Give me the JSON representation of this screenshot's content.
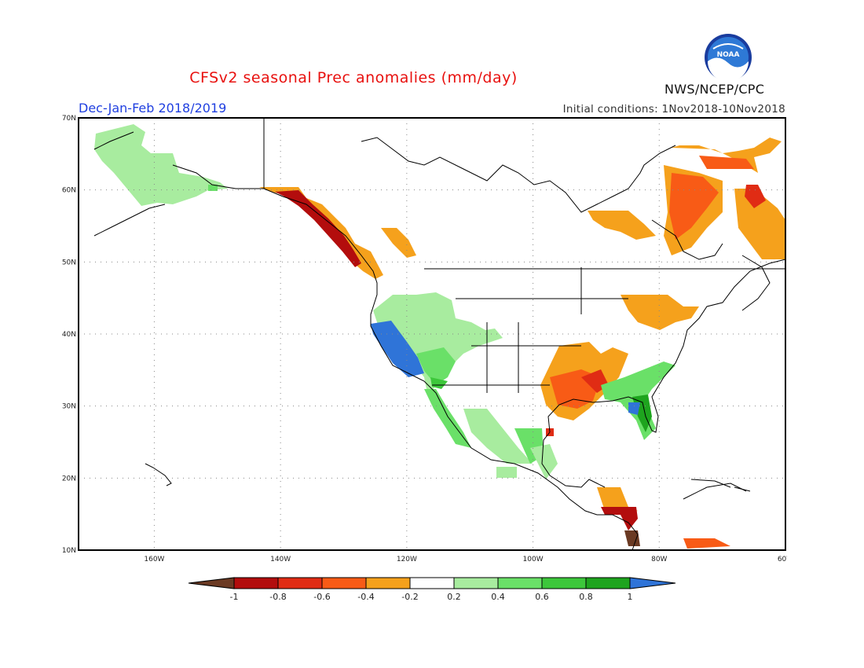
{
  "title": "CFSv2 seasonal Prec anomalies (mm/day)",
  "period": "Dec-Jan-Feb 2018/2019",
  "initial_conditions": "Initial conditions: 1Nov2018-10Nov2018",
  "agency": "NWS/NCEP/CPC",
  "logo_text": "NOAA",
  "map": {
    "lat_labels": [
      "70N",
      "60N",
      "50N",
      "40N",
      "30N",
      "20N",
      "10N"
    ],
    "lon_labels": [
      "160W",
      "140W",
      "120W",
      "100W",
      "80W",
      "60W"
    ],
    "lat_range": [
      10,
      70
    ],
    "lon_range": [
      -172,
      -60
    ],
    "grid": "dotted"
  },
  "colorbar": {
    "labels": [
      "-1",
      "-0.8",
      "-0.6",
      "-0.4",
      "-0.2",
      "0.2",
      "0.4",
      "0.6",
      "0.8",
      "1"
    ],
    "colors": {
      "below_min": "#6b3a23",
      "n08": "#b30d0d",
      "n06": "#e02c14",
      "n04": "#f85b16",
      "n02": "#f5a11c",
      "zero": "#ffffff",
      "p02": "#a8ec9f",
      "p04": "#6ae068",
      "p06": "#3dc73b",
      "p08": "#1ea41e",
      "above_max": "#2f74d8"
    }
  }
}
